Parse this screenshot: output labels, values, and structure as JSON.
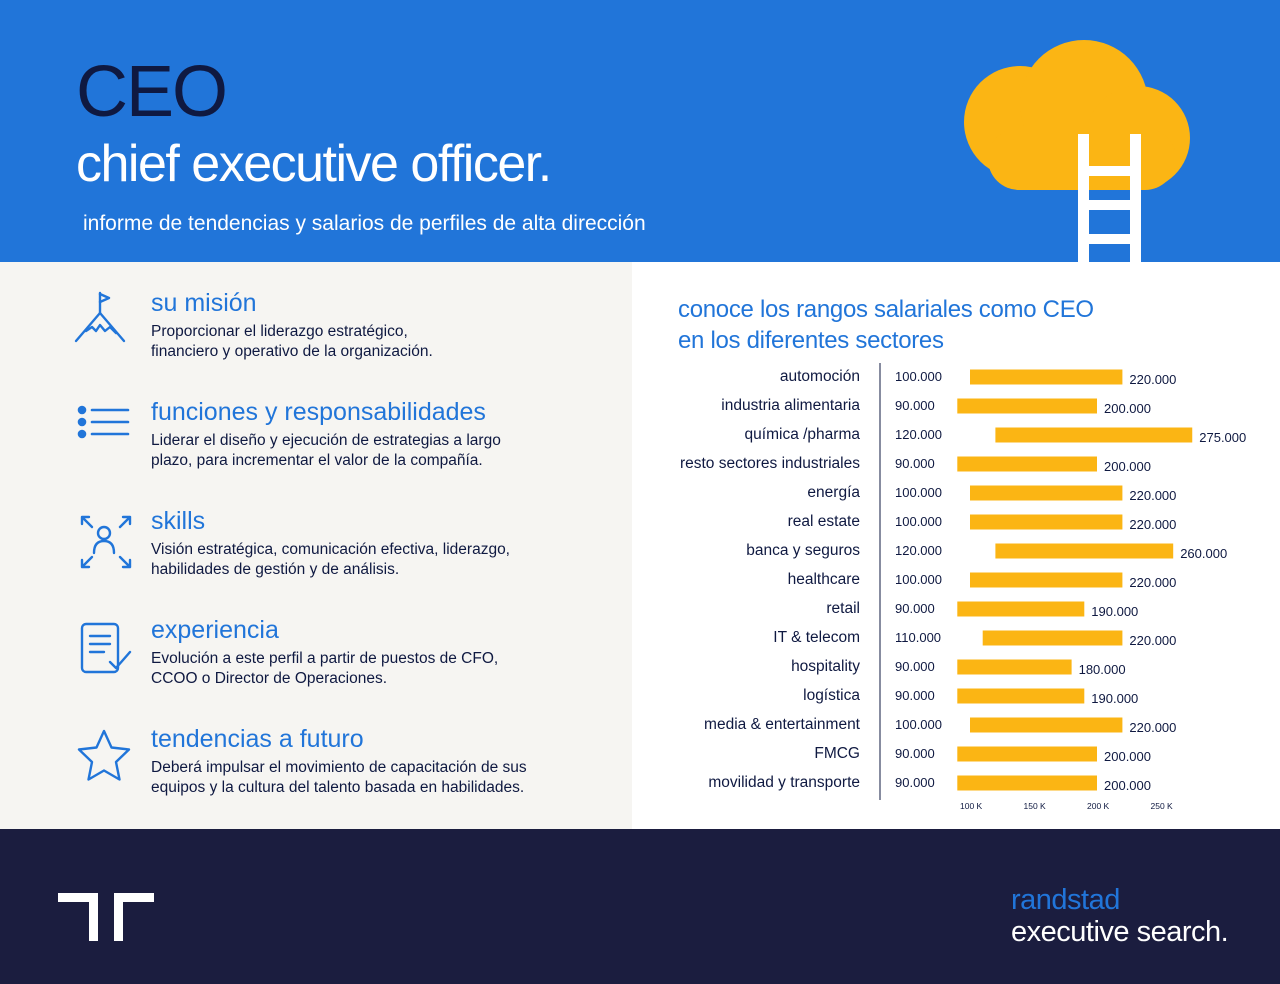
{
  "header": {
    "title": "CEO",
    "subtitle": "chief executive officer.",
    "description": "informe de tendencias y salarios de perfiles de alta dirección"
  },
  "colors": {
    "header_bg": "#2175d9",
    "navy": "#0f1941",
    "accent_blue": "#2175d9",
    "bar": "#fbb514",
    "left_bg": "#f6f5f2",
    "footer_bg": "#1b1d3f"
  },
  "sections": [
    {
      "icon": "mountain-flag-icon",
      "heading": "su misión",
      "lines": [
        "Proporcionar el liderazgo estratégico,",
        "financiero y operativo de la organización."
      ]
    },
    {
      "icon": "list-icon",
      "heading": "funciones y responsabilidades",
      "lines": [
        "Liderar el diseño y ejecución de estrategias a largo",
        "plazo, para incrementar el valor de la compañía."
      ]
    },
    {
      "icon": "person-expand-icon",
      "heading": "skills",
      "lines": [
        "Visión estratégica, comunicación efectiva, liderazgo,",
        "habilidades de gestión y de análisis."
      ]
    },
    {
      "icon": "document-check-icon",
      "heading": "experiencia",
      "lines": [
        "Evolución a este perfil a partir de puestos de CFO,",
        "CCOO o Director de Operaciones."
      ]
    },
    {
      "icon": "star-icon",
      "heading": "tendencias a futuro",
      "lines": [
        "Deberá impulsar el movimiento de capacitación de sus",
        "equipos y la cultura del talento basada en habilidades."
      ]
    }
  ],
  "chart_title_lines": [
    "conoce los rangos salariales como CEO",
    "en los diferentes sectores"
  ],
  "chart_data": {
    "type": "bar",
    "orientation": "horizontal-range",
    "title": "conoce los rangos salariales como CEO en los diferentes sectores",
    "categories": [
      "automoción",
      "industria alimentaria",
      "química /pharma",
      "resto sectores industriales",
      "energía",
      "real estate",
      "banca y seguros",
      "healthcare",
      "retail",
      "IT & telecom",
      "hospitality",
      "logística",
      "media  & entertainment",
      "FMCG",
      "movilidad y transporte"
    ],
    "min_labels": [
      "100.000",
      "90.000",
      "120.000",
      "90.000",
      "100.000",
      "100.000",
      "120.000",
      "100.000",
      "90.000",
      "110.000",
      "90.000",
      "90.000",
      "100.000",
      "90.000",
      "90.000"
    ],
    "max_labels": [
      "220.000",
      "200.000",
      "275.000",
      "200.000",
      "220.000",
      "220.000",
      "260.000",
      "220.000",
      "190.000",
      "220.000",
      "180.000",
      "190.000",
      "220.000",
      "200.000",
      "200.000"
    ],
    "series": [
      {
        "name": "min",
        "values": [
          100000,
          90000,
          120000,
          90000,
          100000,
          100000,
          120000,
          100000,
          90000,
          110000,
          90000,
          90000,
          100000,
          90000,
          90000
        ]
      },
      {
        "name": "max",
        "values": [
          220000,
          200000,
          275000,
          200000,
          220000,
          220000,
          260000,
          220000,
          190000,
          220000,
          180000,
          190000,
          220000,
          200000,
          200000
        ]
      }
    ],
    "x_ticks": [
      100000,
      150000,
      200000,
      250000
    ],
    "x_tick_labels": [
      "100 K",
      "150 K",
      "200 K",
      "250 K"
    ],
    "bar_color": "#fbb514"
  },
  "brand": {
    "line1": "randstad",
    "line2": "executive search."
  }
}
